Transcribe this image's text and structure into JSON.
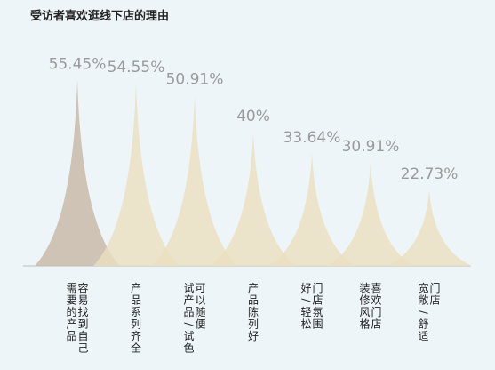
{
  "chart_data": {
    "type": "bar",
    "title": "受访者喜欢逛线下店的理由",
    "categories": [
      [
        "容易找到自己",
        "需要的产品"
      ],
      [
        "产品系列齐全"
      ],
      [
        "可以随便",
        "试产品/试色"
      ],
      [
        "产品陈列好"
      ],
      [
        "门店氛围",
        "好/轻松"
      ],
      [
        "喜欢门店",
        "装修风格"
      ],
      [
        "门店",
        "宽敞/舒适"
      ]
    ],
    "values": [
      55.45,
      54.55,
      50.91,
      40,
      33.64,
      30.91,
      22.73
    ],
    "value_labels": [
      "55.45%",
      "54.55%",
      "50.91%",
      "40%",
      "33.64%",
      "30.91%",
      "22.73%"
    ],
    "unit": "%",
    "ylim": [
      0,
      60
    ],
    "grid": false,
    "legend": "none",
    "colors": {
      "first_mark": "#c8b8a6",
      "other_marks": "#eadfc0",
      "baseline": "#bfbfbf",
      "value_text": "#9a9a9a",
      "title_text": "#222222",
      "label_text": "#222222",
      "background": "#eef5f9"
    }
  }
}
